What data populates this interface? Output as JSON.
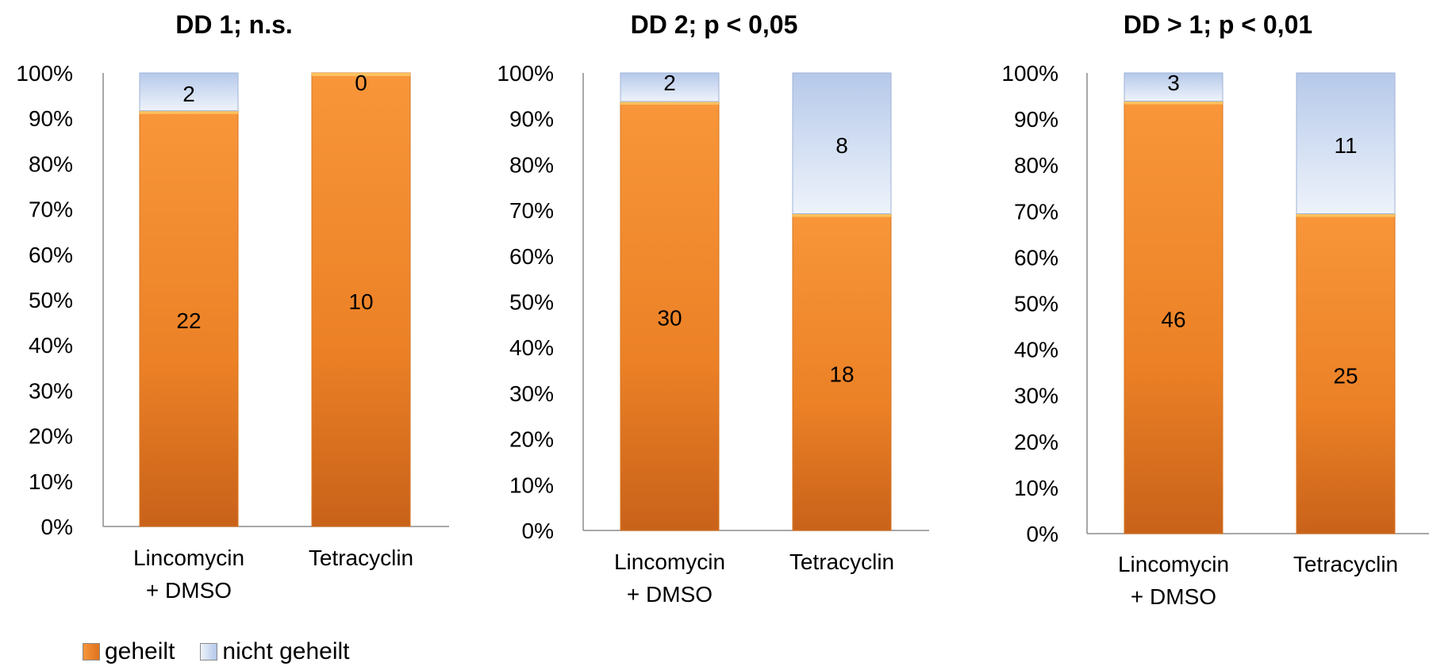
{
  "colors": {
    "geheilt": "#f28a2e",
    "nicht_geheilt": "#c5d5ee",
    "axis": "#8c8c8c",
    "text": "#000000"
  },
  "legend": {
    "items": [
      {
        "label": "geheilt",
        "color": "#f28a2e"
      },
      {
        "label": "nicht geheilt",
        "color": "#c5d5ee"
      }
    ]
  },
  "chart_data": [
    {
      "type": "bar",
      "stacked": true,
      "percent_stacked": true,
      "title": "DD 1; n.s.",
      "categories": [
        [
          "Lincomycin",
          "+ DMSO"
        ],
        [
          "Tetracyclin"
        ]
      ],
      "series": [
        {
          "name": "geheilt",
          "values": [
            22,
            10
          ]
        },
        {
          "name": "nicht geheilt",
          "values": [
            2,
            0
          ]
        }
      ],
      "y_ticks": [
        "0%",
        "10%",
        "20%",
        "30%",
        "40%",
        "50%",
        "60%",
        "70%",
        "80%",
        "90%",
        "100%"
      ],
      "ylim": [
        0,
        100
      ],
      "grid": false
    },
    {
      "type": "bar",
      "stacked": true,
      "percent_stacked": true,
      "title": "DD 2; p < 0,05",
      "categories": [
        [
          "Lincomycin",
          "+ DMSO"
        ],
        [
          "Tetracyclin"
        ]
      ],
      "series": [
        {
          "name": "geheilt",
          "values": [
            30,
            18
          ]
        },
        {
          "name": "nicht geheilt",
          "values": [
            2,
            8
          ]
        }
      ],
      "y_ticks": [
        "0%",
        "10%",
        "20%",
        "30%",
        "40%",
        "50%",
        "60%",
        "70%",
        "80%",
        "90%",
        "100%"
      ],
      "ylim": [
        0,
        100
      ],
      "grid": false
    },
    {
      "type": "bar",
      "stacked": true,
      "percent_stacked": true,
      "title": "DD > 1; p < 0,01",
      "categories": [
        [
          "Lincomycin",
          "+ DMSO"
        ],
        [
          "Tetracyclin"
        ]
      ],
      "series": [
        {
          "name": "geheilt",
          "values": [
            46,
            25
          ]
        },
        {
          "name": "nicht geheilt",
          "values": [
            3,
            11
          ]
        }
      ],
      "y_ticks": [
        "0%",
        "10%",
        "20%",
        "30%",
        "40%",
        "50%",
        "60%",
        "70%",
        "80%",
        "90%",
        "100%"
      ],
      "ylim": [
        0,
        100
      ],
      "grid": false
    }
  ]
}
